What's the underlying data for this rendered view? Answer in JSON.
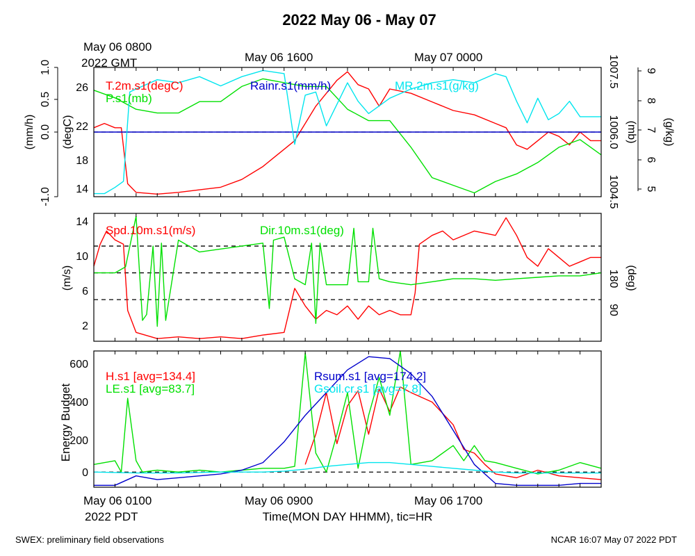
{
  "page": {
    "title": "2022 May 06 - May 07",
    "footer_left": "SWEX: preliminary field observations",
    "footer_right": "NCAR 16:07 May 07 2022 PDT",
    "top_time_labels": [
      "May 06 0800",
      "2022 GMT",
      "May 06 1600",
      "May 07 0000"
    ],
    "bottom_time_labels": [
      "May 06 0100",
      "2022 PDT",
      "May 06 0900",
      "May 06 1700"
    ],
    "xlabel": "Time(MON DAY HHMM), tic=HR"
  },
  "colors": {
    "red": "#ff0000",
    "green": "#00e000",
    "blue": "#0000cc",
    "cyan": "#00e5ee",
    "black": "#000000"
  },
  "chart_data": [
    {
      "type": "line",
      "x_range_hours_pdt": [
        1,
        25
      ],
      "axes": [
        {
          "label": "(mm/h)",
          "ticks": [
            "-1.0",
            "0.0",
            "0.5",
            "1.0"
          ],
          "range": [
            -1.0,
            1.0
          ]
        },
        {
          "label": "(degC)",
          "ticks": [
            "14",
            "18",
            "22",
            "26"
          ],
          "range": [
            13.5,
            28.5
          ]
        },
        {
          "label": "(mb)",
          "ticks": [
            "1004.5",
            "1006.0",
            "1007.5"
          ],
          "range": [
            1004.3,
            1007.7
          ]
        },
        {
          "label": "(g/kg)",
          "ticks": [
            "5",
            "6",
            "7",
            "8",
            "9"
          ],
          "range": [
            4.9,
            9.1
          ]
        }
      ],
      "series": [
        {
          "name": "T.2m.s1(degC)",
          "color": "red",
          "axis": 1,
          "x": [
            1,
            1.5,
            2,
            2.3,
            2.6,
            3,
            4,
            5,
            6,
            7,
            8,
            9,
            9.5,
            10,
            10.5,
            11,
            11.5,
            12,
            12.5,
            13,
            13.5,
            14,
            14.5,
            15,
            16,
            17,
            18,
            19,
            20,
            20.5,
            21,
            21.5,
            22,
            22.5,
            23,
            23.5,
            24,
            24.5,
            25
          ],
          "y": [
            21.5,
            22,
            21.5,
            21.5,
            15,
            14,
            13.8,
            14,
            14.3,
            14.6,
            15.5,
            17,
            18,
            19,
            20,
            22,
            24,
            25.5,
            27,
            28,
            26.5,
            26,
            24,
            26,
            25.5,
            24.5,
            23.5,
            23,
            22,
            21.5,
            19.5,
            19,
            20,
            21,
            20.5,
            19.5,
            21,
            20,
            20
          ]
        },
        {
          "name": "P.s1(mb)",
          "color": "green",
          "axis": 2,
          "x": [
            1,
            2,
            3,
            4,
            5,
            6,
            7,
            8,
            9,
            10,
            11,
            12,
            13,
            14,
            15,
            16,
            17,
            18,
            19,
            20,
            21,
            22,
            23,
            24,
            25
          ],
          "y": [
            1007.1,
            1006.9,
            1006.6,
            1006.5,
            1006.5,
            1006.8,
            1006.8,
            1007.2,
            1007.4,
            1007.3,
            1007.2,
            1007.2,
            1006.6,
            1006.3,
            1006.3,
            1005.6,
            1004.8,
            1004.6,
            1004.4,
            1004.7,
            1004.9,
            1005.2,
            1005.6,
            1005.8,
            1005.4
          ]
        },
        {
          "name": "Rainr.s1(mm/h)",
          "color": "blue",
          "axis": 0,
          "x": [
            1,
            25
          ],
          "y": [
            0,
            0
          ]
        },
        {
          "name": "MR.2m.s1(g/kg)",
          "color": "cyan",
          "axis": 3,
          "x": [
            1,
            1.5,
            2,
            2.4,
            2.7,
            3,
            4,
            5,
            6,
            7,
            8,
            9,
            10,
            10.5,
            11,
            11.5,
            12,
            13,
            13.5,
            14,
            15,
            16,
            17,
            18,
            19,
            20,
            20.5,
            21,
            21.5,
            22,
            22.5,
            23,
            23.5,
            24,
            25
          ],
          "y": [
            5.0,
            5.0,
            5.2,
            5.4,
            8.3,
            8.4,
            8.7,
            8.6,
            8.8,
            8.5,
            8.8,
            9.0,
            8.9,
            6.6,
            8.2,
            8.3,
            7.2,
            8.6,
            8.0,
            7.6,
            8.1,
            8.4,
            8.6,
            8.7,
            8.6,
            8.9,
            8.8,
            8.0,
            7.3,
            8.1,
            7.4,
            7.6,
            8.0,
            7.5,
            7.5
          ]
        }
      ],
      "dashed_lines": [
        {
          "axis": 0,
          "y": 0
        }
      ]
    },
    {
      "type": "line",
      "x_range_hours_pdt": [
        1,
        25
      ],
      "axes": [
        {
          "label": "(m/s)",
          "ticks": [
            "2",
            "6",
            "10",
            "14"
          ],
          "range": [
            0.5,
            15
          ]
        },
        {
          "label": "(deg)",
          "ticks": [
            "90",
            "180"
          ],
          "range": [
            -50,
            380
          ]
        }
      ],
      "series": [
        {
          "name": "Spd.10m.s1(m/s)",
          "color": "red",
          "axis": 0,
          "x": [
            1,
            1.3,
            1.6,
            2,
            2.4,
            2.6,
            3,
            4,
            5,
            6,
            7,
            8,
            9,
            10,
            10.5,
            11,
            11.5,
            12,
            12.5,
            13,
            13.5,
            14,
            14.5,
            15,
            15.5,
            16,
            16.2,
            16.4,
            17,
            17.5,
            18,
            19,
            20,
            20.5,
            21,
            21.5,
            22,
            22.5,
            23,
            23.5,
            24,
            24.5,
            25
          ],
          "y": [
            9,
            11.5,
            13,
            12,
            11.5,
            4,
            1.5,
            0.8,
            1,
            0.8,
            1,
            0.8,
            1.2,
            1.5,
            6.5,
            4.5,
            3,
            4,
            3.5,
            4.5,
            3,
            4.5,
            3.5,
            4,
            3.5,
            3.5,
            6,
            11.5,
            12.5,
            13,
            12,
            13,
            12.5,
            14.5,
            12.5,
            10,
            9,
            11,
            10,
            9,
            9.5,
            10,
            10
          ]
        },
        {
          "name": "Dir.10m.s1(deg)",
          "color": "green",
          "axis": 1,
          "x": [
            1,
            2,
            2.5,
            3,
            3.3,
            3.5,
            3.8,
            4,
            4.2,
            4.4,
            5,
            5.5,
            6,
            7,
            8,
            9,
            9.3,
            9.5,
            10,
            10.5,
            11,
            11.3,
            11.5,
            11.7,
            12,
            12.5,
            13,
            13.3,
            13.5,
            14,
            14.2,
            14.5,
            15,
            16,
            17,
            18,
            19,
            20,
            21,
            22,
            23,
            24,
            25
          ],
          "y": [
            180,
            180,
            200,
            370,
            20,
            40,
            270,
            0,
            280,
            20,
            290,
            270,
            250,
            260,
            270,
            280,
            60,
            290,
            300,
            160,
            140,
            280,
            10,
            280,
            140,
            140,
            140,
            330,
            150,
            150,
            330,
            160,
            150,
            140,
            150,
            160,
            160,
            155,
            160,
            165,
            170,
            170,
            180
          ]
        }
      ],
      "dashed_lines": [
        {
          "axis": 1,
          "y": 90
        },
        {
          "axis": 1,
          "y": 180
        },
        {
          "axis": 1,
          "y": 270
        }
      ]
    },
    {
      "type": "line",
      "x_range_hours_pdt": [
        1,
        25
      ],
      "axes": [
        {
          "label": "Energy Budget",
          "ticks": [
            "0",
            "200",
            "400",
            "600"
          ],
          "range": [
            -80,
            640
          ]
        }
      ],
      "series": [
        {
          "name": "H.s1 [avg=134.4]",
          "color": "red",
          "axis": 0,
          "x": [
            11,
            11.5,
            12,
            12.5,
            13,
            13.5,
            14,
            14.5,
            15,
            15.5,
            16,
            17,
            18,
            18.5,
            19,
            19.5,
            20,
            21,
            22,
            23,
            24,
            25
          ],
          "y": [
            40,
            200,
            420,
            150,
            350,
            430,
            200,
            440,
            320,
            450,
            420,
            370,
            250,
            120,
            100,
            40,
            -10,
            -30,
            10,
            -20,
            -30,
            -40
          ]
        },
        {
          "name": "LE.s1 [avg=83.7]",
          "color": "green",
          "axis": 0,
          "x": [
            1,
            2,
            2.3,
            2.6,
            3,
            3.3,
            4,
            5,
            6,
            7,
            8,
            9,
            10,
            10.5,
            11,
            11.5,
            12,
            12.5,
            13,
            13.5,
            14,
            14.5,
            15,
            15.5,
            16,
            17,
            18,
            18.5,
            19,
            19.5,
            20,
            21,
            22,
            23,
            24,
            25
          ],
          "y": [
            40,
            60,
            0,
            390,
            60,
            0,
            10,
            0,
            10,
            0,
            10,
            20,
            20,
            30,
            630,
            100,
            0,
            200,
            420,
            20,
            300,
            500,
            300,
            640,
            40,
            60,
            140,
            60,
            140,
            60,
            50,
            20,
            -10,
            10,
            50,
            20
          ]
        },
        {
          "name": "Rsum.s1 [avg=174.2]",
          "color": "blue",
          "axis": 0,
          "x": [
            1,
            2,
            3,
            4,
            5,
            6,
            7,
            8,
            9,
            10,
            11,
            12,
            13,
            14,
            15,
            16,
            17,
            18,
            19,
            20,
            21,
            22,
            23,
            24,
            25
          ],
          "y": [
            -70,
            -70,
            -20,
            -40,
            -30,
            -20,
            -10,
            10,
            50,
            160,
            300,
            420,
            540,
            610,
            600,
            520,
            400,
            220,
            40,
            -60,
            -70,
            -70,
            -70,
            -60,
            -60
          ]
        },
        {
          "name": "Gsoil.cr.s1 [avg=7.8]",
          "color": "cyan",
          "axis": 0,
          "x": [
            1,
            3,
            5,
            7,
            9,
            10,
            11,
            12,
            13,
            14,
            15,
            16,
            17,
            18,
            19,
            20,
            21,
            22,
            23,
            24,
            25
          ],
          "y": [
            0,
            -5,
            -5,
            0,
            0,
            5,
            15,
            30,
            40,
            50,
            50,
            40,
            30,
            20,
            10,
            0,
            -5,
            -5,
            -5,
            -5,
            -5
          ]
        }
      ],
      "dashed_lines": [
        {
          "axis": 0,
          "y": 0
        }
      ]
    }
  ]
}
